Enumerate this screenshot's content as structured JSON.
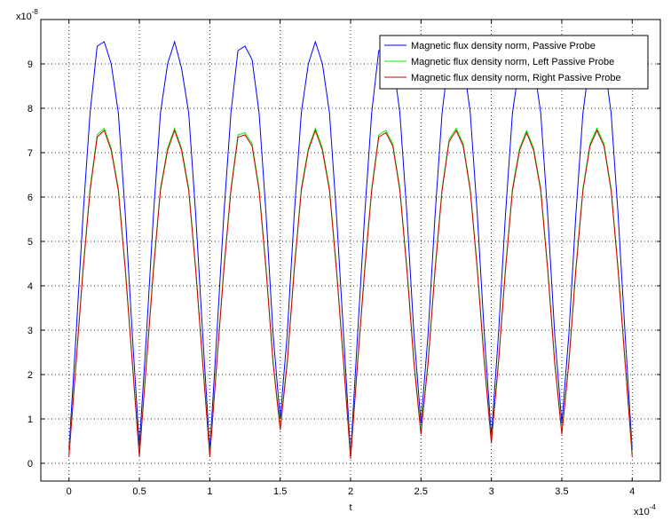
{
  "chart_data": {
    "type": "line",
    "xlabel": "t",
    "ylabel": "",
    "x_multiplier_label": "x10",
    "x_multiplier_exp": "-4",
    "y_multiplier_label": "x10",
    "y_multiplier_exp": "-8",
    "xlim": [
      -0.2,
      4.2
    ],
    "ylim": [
      -0.4,
      10.0
    ],
    "x_ticks": [
      "0",
      "0.5",
      "1",
      "1.5",
      "2",
      "2.5",
      "3",
      "3.5",
      "4"
    ],
    "x_tick_values": [
      0,
      0.5,
      1,
      1.5,
      2,
      2.5,
      3,
      3.5,
      4
    ],
    "y_ticks": [
      "0",
      "1",
      "2",
      "3",
      "4",
      "5",
      "6",
      "7",
      "8",
      "9"
    ],
    "y_tick_values": [
      0,
      1,
      2,
      3,
      4,
      5,
      6,
      7,
      8,
      9
    ],
    "grid": true,
    "legend_position": "top-right",
    "x": [
      0,
      0.05,
      0.1,
      0.15,
      0.2,
      0.25,
      0.3,
      0.35,
      0.4,
      0.45,
      0.5,
      0.55,
      0.6,
      0.65,
      0.7,
      0.75,
      0.8,
      0.85,
      0.9,
      0.95,
      1.0,
      1.05,
      1.1,
      1.15,
      1.2,
      1.25,
      1.3,
      1.35,
      1.4,
      1.45,
      1.5,
      1.55,
      1.6,
      1.65,
      1.7,
      1.75,
      1.8,
      1.85,
      1.9,
      1.95,
      2.0,
      2.05,
      2.1,
      2.15,
      2.2,
      2.25,
      2.3,
      2.35,
      2.4,
      2.45,
      2.5,
      2.55,
      2.6,
      2.65,
      2.7,
      2.75,
      2.8,
      2.85,
      2.9,
      2.95,
      3.0,
      3.05,
      3.1,
      3.15,
      3.2,
      3.25,
      3.3,
      3.35,
      3.4,
      3.45,
      3.5,
      3.55,
      3.6,
      3.65,
      3.7,
      3.75,
      3.8,
      3.85,
      3.9,
      3.95,
      4.0
    ],
    "series": [
      {
        "name": "Magnetic flux density norm, Passive Probe",
        "color": "#0000ff",
        "values": [
          0.3,
          2.9,
          5.6,
          7.9,
          9.4,
          9.5,
          9.0,
          7.9,
          5.6,
          2.9,
          0.4,
          2.9,
          5.6,
          7.9,
          9.0,
          9.5,
          8.9,
          7.9,
          5.6,
          2.9,
          0.3,
          2.9,
          5.6,
          7.9,
          9.3,
          9.4,
          9.1,
          7.9,
          5.6,
          2.9,
          1.0,
          2.9,
          5.6,
          7.9,
          9.0,
          9.5,
          9.0,
          7.9,
          5.6,
          2.9,
          0.2,
          2.9,
          5.6,
          7.9,
          9.3,
          9.3,
          9.1,
          7.9,
          5.6,
          2.9,
          0.9,
          2.9,
          5.6,
          7.9,
          9.2,
          9.5,
          9.1,
          7.9,
          5.6,
          2.9,
          0.6,
          2.9,
          5.6,
          7.9,
          9.0,
          9.4,
          9.0,
          7.9,
          5.6,
          2.9,
          0.9,
          2.9,
          5.6,
          7.9,
          9.1,
          9.5,
          9.1,
          7.9,
          5.6,
          2.9,
          0.3
        ]
      },
      {
        "name": "Magnetic flux density norm, Left Passive Probe",
        "color": "#00ee00",
        "values": [
          0.2,
          2.3,
          4.4,
          6.2,
          7.4,
          7.55,
          7.1,
          6.2,
          4.4,
          2.3,
          0.2,
          2.3,
          4.4,
          6.2,
          7.1,
          7.55,
          7.1,
          6.2,
          4.4,
          2.3,
          0.2,
          2.3,
          4.4,
          6.2,
          7.4,
          7.45,
          7.2,
          6.2,
          4.4,
          2.3,
          0.8,
          2.3,
          4.4,
          6.2,
          7.1,
          7.55,
          7.1,
          6.2,
          4.4,
          2.3,
          0.15,
          2.3,
          4.4,
          6.2,
          7.4,
          7.5,
          7.2,
          6.2,
          4.4,
          2.3,
          0.7,
          2.3,
          4.4,
          6.2,
          7.3,
          7.55,
          7.2,
          6.2,
          4.4,
          2.3,
          0.5,
          2.3,
          4.4,
          6.2,
          7.1,
          7.5,
          7.1,
          6.2,
          4.4,
          2.3,
          0.7,
          2.3,
          4.4,
          6.2,
          7.2,
          7.55,
          7.2,
          6.2,
          4.4,
          2.3,
          0.2
        ]
      },
      {
        "name": "Magnetic flux density norm, Right Passive Probe",
        "color": "#cc0000",
        "values": [
          0.15,
          2.25,
          4.35,
          6.15,
          7.35,
          7.5,
          7.05,
          6.15,
          4.35,
          2.25,
          0.15,
          2.25,
          4.35,
          6.15,
          7.05,
          7.5,
          7.05,
          6.15,
          4.35,
          2.25,
          0.15,
          2.25,
          4.35,
          6.15,
          7.35,
          7.4,
          7.15,
          6.15,
          4.35,
          2.25,
          0.75,
          2.25,
          4.35,
          6.15,
          7.05,
          7.5,
          7.05,
          6.15,
          4.35,
          2.25,
          0.1,
          2.25,
          4.35,
          6.15,
          7.35,
          7.45,
          7.15,
          6.15,
          4.35,
          2.25,
          0.65,
          2.25,
          4.35,
          6.15,
          7.25,
          7.5,
          7.15,
          6.15,
          4.35,
          2.25,
          0.45,
          2.25,
          4.35,
          6.15,
          7.05,
          7.45,
          7.05,
          6.15,
          4.35,
          2.25,
          0.65,
          2.25,
          4.35,
          6.15,
          7.15,
          7.5,
          7.15,
          6.15,
          4.35,
          2.25,
          0.15
        ]
      }
    ]
  }
}
